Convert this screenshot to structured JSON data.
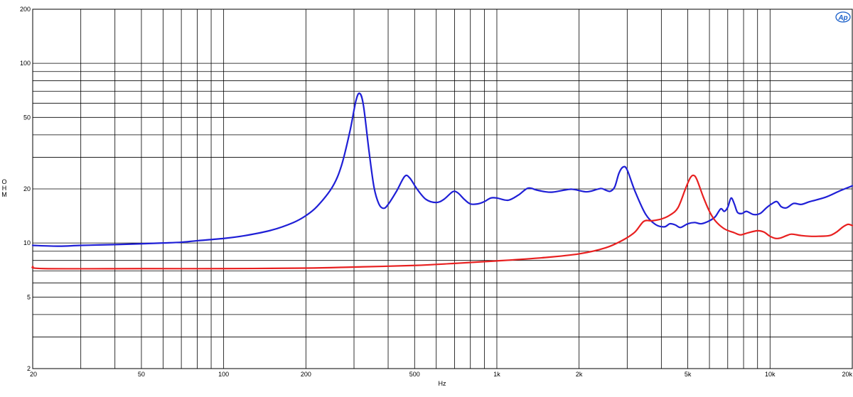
{
  "chart_data": {
    "type": "line",
    "title": "",
    "xlabel": "Hz",
    "ylabel": "O\nH\nM",
    "xscale": "log",
    "yscale": "log",
    "xlim": [
      20,
      20000
    ],
    "ylim": [
      2,
      200
    ],
    "grid": true,
    "legend": "none",
    "x_tick_labels": [
      {
        "value": 20,
        "label": "20"
      },
      {
        "value": 50,
        "label": "50"
      },
      {
        "value": 100,
        "label": "100"
      },
      {
        "value": 200,
        "label": "200"
      },
      {
        "value": 500,
        "label": "500"
      },
      {
        "value": 1000,
        "label": "1k"
      },
      {
        "value": 2000,
        "label": "2k"
      },
      {
        "value": 5000,
        "label": "5k"
      },
      {
        "value": 10000,
        "label": "10k"
      },
      {
        "value": 20000,
        "label": "20k"
      }
    ],
    "y_tick_labels": [
      {
        "value": 200,
        "label": "200"
      },
      {
        "value": 100,
        "label": "100"
      },
      {
        "value": 50,
        "label": "50"
      },
      {
        "value": 20,
        "label": "20"
      },
      {
        "value": 10,
        "label": "10"
      },
      {
        "value": 5,
        "label": "5"
      },
      {
        "value": 2,
        "label": "2"
      }
    ],
    "series": [
      {
        "color": "#1f1fd6",
        "points": [
          [
            20,
            9.7
          ],
          [
            25,
            9.6
          ],
          [
            30,
            9.7
          ],
          [
            40,
            9.8
          ],
          [
            50,
            9.9
          ],
          [
            60,
            10.0
          ],
          [
            70,
            10.1
          ],
          [
            80,
            10.3
          ],
          [
            100,
            10.6
          ],
          [
            120,
            11.0
          ],
          [
            150,
            11.8
          ],
          [
            180,
            13.0
          ],
          [
            200,
            14.2
          ],
          [
            220,
            16.0
          ],
          [
            250,
            20.5
          ],
          [
            270,
            27
          ],
          [
            290,
            42
          ],
          [
            305,
            62
          ],
          [
            315,
            68
          ],
          [
            325,
            58
          ],
          [
            340,
            33
          ],
          [
            355,
            20.5
          ],
          [
            370,
            16.5
          ],
          [
            385,
            15.6
          ],
          [
            400,
            16.4
          ],
          [
            430,
            19.5
          ],
          [
            460,
            23.5
          ],
          [
            480,
            23.0
          ],
          [
            510,
            20.0
          ],
          [
            550,
            17.5
          ],
          [
            600,
            16.8
          ],
          [
            640,
            17.5
          ],
          [
            690,
            19.3
          ],
          [
            720,
            19.0
          ],
          [
            760,
            17.5
          ],
          [
            800,
            16.5
          ],
          [
            850,
            16.5
          ],
          [
            900,
            17.0
          ],
          [
            950,
            17.8
          ],
          [
            1000,
            17.8
          ],
          [
            1100,
            17.3
          ],
          [
            1200,
            18.5
          ],
          [
            1300,
            20.2
          ],
          [
            1400,
            19.7
          ],
          [
            1500,
            19.3
          ],
          [
            1600,
            19.2
          ],
          [
            1800,
            19.8
          ],
          [
            1900,
            19.9
          ],
          [
            2100,
            19.3
          ],
          [
            2200,
            19.4
          ],
          [
            2400,
            20.1
          ],
          [
            2500,
            19.7
          ],
          [
            2600,
            19.4
          ],
          [
            2700,
            20.5
          ],
          [
            2800,
            24.5
          ],
          [
            2900,
            26.5
          ],
          [
            3000,
            25.5
          ],
          [
            3200,
            19.5
          ],
          [
            3500,
            14.5
          ],
          [
            3800,
            12.7
          ],
          [
            4100,
            12.3
          ],
          [
            4300,
            12.8
          ],
          [
            4500,
            12.6
          ],
          [
            4700,
            12.2
          ],
          [
            5000,
            12.8
          ],
          [
            5300,
            13.0
          ],
          [
            5600,
            12.8
          ],
          [
            6000,
            13.3
          ],
          [
            6300,
            14.0
          ],
          [
            6600,
            15.5
          ],
          [
            6800,
            15.0
          ],
          [
            7000,
            15.8
          ],
          [
            7200,
            17.8
          ],
          [
            7400,
            16.5
          ],
          [
            7600,
            14.8
          ],
          [
            7900,
            14.6
          ],
          [
            8200,
            15.0
          ],
          [
            8700,
            14.4
          ],
          [
            9200,
            14.6
          ],
          [
            9700,
            15.7
          ],
          [
            10200,
            16.6
          ],
          [
            10600,
            17.0
          ],
          [
            11000,
            15.9
          ],
          [
            11500,
            15.7
          ],
          [
            12200,
            16.6
          ],
          [
            13000,
            16.4
          ],
          [
            14000,
            17.0
          ],
          [
            16000,
            18.0
          ],
          [
            18000,
            19.5
          ],
          [
            20000,
            20.8
          ]
        ]
      },
      {
        "color": "#e82020",
        "points": [
          [
            20,
            7.4
          ],
          [
            22,
            7.2
          ],
          [
            50,
            7.2
          ],
          [
            100,
            7.2
          ],
          [
            200,
            7.25
          ],
          [
            300,
            7.35
          ],
          [
            500,
            7.5
          ],
          [
            700,
            7.7
          ],
          [
            1000,
            7.95
          ],
          [
            1500,
            8.3
          ],
          [
            2000,
            8.7
          ],
          [
            2500,
            9.4
          ],
          [
            2900,
            10.4
          ],
          [
            3200,
            11.5
          ],
          [
            3450,
            13.2
          ],
          [
            3700,
            13.3
          ],
          [
            4000,
            13.6
          ],
          [
            4300,
            14.3
          ],
          [
            4600,
            15.7
          ],
          [
            4900,
            20.0
          ],
          [
            5100,
            23.0
          ],
          [
            5250,
            23.8
          ],
          [
            5400,
            22.5
          ],
          [
            5700,
            18.0
          ],
          [
            6000,
            15.0
          ],
          [
            6300,
            13.3
          ],
          [
            6800,
            12.0
          ],
          [
            7400,
            11.4
          ],
          [
            7800,
            11.1
          ],
          [
            8300,
            11.4
          ],
          [
            9000,
            11.7
          ],
          [
            9500,
            11.5
          ],
          [
            10000,
            10.9
          ],
          [
            10500,
            10.6
          ],
          [
            11000,
            10.7
          ],
          [
            11500,
            11.0
          ],
          [
            12000,
            11.2
          ],
          [
            13000,
            11.0
          ],
          [
            14000,
            10.9
          ],
          [
            15000,
            10.9
          ],
          [
            16500,
            11.0
          ],
          [
            17500,
            11.5
          ],
          [
            18500,
            12.3
          ],
          [
            19300,
            12.7
          ],
          [
            20000,
            12.5
          ]
        ]
      }
    ]
  },
  "logo": {
    "text": "Ap"
  }
}
